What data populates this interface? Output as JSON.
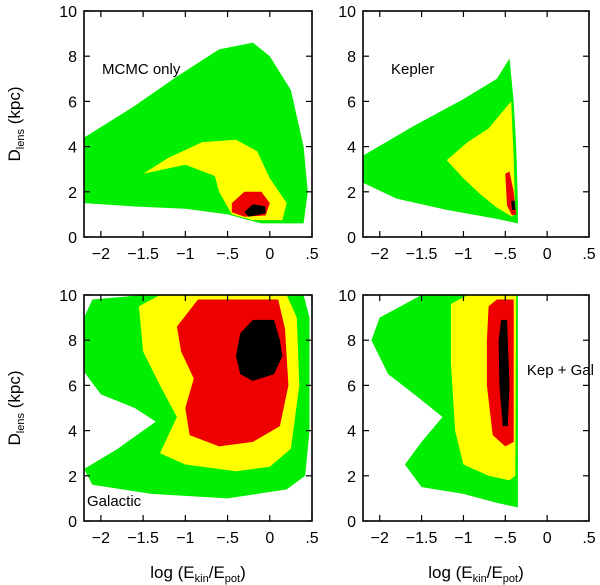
{
  "chart_data": {
    "type": "contour",
    "colors": {
      "level_1": "#00ee00",
      "level_2": "#ffff00",
      "level_3": "#ee0000",
      "level_4": "#000000",
      "frame": "#000000"
    },
    "shared_axes": {
      "x": {
        "range": [
          -2.2,
          0.5
        ],
        "ticks": [
          -2,
          -1.5,
          -1,
          -0.5,
          0,
          0.5
        ],
        "tick_labels": [
          "−2",
          "−1.5",
          "−1",
          "−.5",
          "0",
          ".5"
        ]
      },
      "y": {
        "range": [
          0,
          10
        ],
        "ticks": [
          0,
          2,
          4,
          6,
          8,
          10
        ],
        "tick_labels": [
          "0",
          "2",
          "4",
          "6",
          "8",
          "10"
        ]
      }
    },
    "axis_labels": {
      "y_main": "D",
      "y_sub": "lens",
      "y_unit": " (kpc)",
      "x_pre": "log (E",
      "x_sub1": "kin",
      "x_mid": "/E",
      "x_sub2": "pot",
      "x_post": ")"
    },
    "panels": [
      {
        "label": "MCMC only",
        "row": 0,
        "col": 0,
        "label_pos": "top-left",
        "regions": {
          "level_1": [
            [
              -2.2,
              1.5
            ],
            [
              -1.6,
              1.35
            ],
            [
              -1.0,
              1.25
            ],
            [
              -0.5,
              1.0
            ],
            [
              -0.1,
              0.6
            ],
            [
              0.4,
              0.6
            ],
            [
              0.45,
              2.0
            ],
            [
              0.4,
              4.0
            ],
            [
              0.25,
              6.5
            ],
            [
              0.0,
              8.0
            ],
            [
              -0.2,
              8.6
            ],
            [
              -0.6,
              8.3
            ],
            [
              -1.1,
              7.1
            ],
            [
              -1.6,
              5.8
            ],
            [
              -2.2,
              4.4
            ]
          ],
          "level_2": [
            [
              -1.5,
              2.8
            ],
            [
              -1.0,
              3.2
            ],
            [
              -0.65,
              2.7
            ],
            [
              -0.6,
              2.0
            ],
            [
              -0.45,
              1.0
            ],
            [
              -0.2,
              0.75
            ],
            [
              0.15,
              0.75
            ],
            [
              0.2,
              1.5
            ],
            [
              0.0,
              2.6
            ],
            [
              -0.15,
              3.8
            ],
            [
              -0.4,
              4.3
            ],
            [
              -0.8,
              4.2
            ],
            [
              -1.2,
              3.5
            ]
          ],
          "level_3": [
            [
              -0.45,
              1.5
            ],
            [
              -0.3,
              2.0
            ],
            [
              -0.1,
              2.0
            ],
            [
              0.0,
              1.5
            ],
            [
              -0.05,
              0.95
            ],
            [
              -0.3,
              0.9
            ],
            [
              -0.45,
              1.1
            ]
          ],
          "level_4": [
            [
              -0.3,
              1.1
            ],
            [
              -0.2,
              1.45
            ],
            [
              -0.05,
              1.35
            ],
            [
              -0.05,
              1.05
            ],
            [
              -0.25,
              0.9
            ]
          ]
        }
      },
      {
        "label": "Kepler",
        "row": 0,
        "col": 1,
        "label_pos": "top-left",
        "regions": {
          "level_1": [
            [
              -2.2,
              2.4
            ],
            [
              -2.2,
              3.6
            ],
            [
              -1.6,
              4.9
            ],
            [
              -1.0,
              6.1
            ],
            [
              -0.6,
              7.0
            ],
            [
              -0.45,
              7.9
            ],
            [
              -0.4,
              6.0
            ],
            [
              -0.37,
              4.0
            ],
            [
              -0.35,
              1.5
            ],
            [
              -0.35,
              0.6
            ],
            [
              -0.6,
              0.8
            ],
            [
              -1.2,
              1.2
            ],
            [
              -1.8,
              1.7
            ]
          ],
          "level_2": [
            [
              -1.2,
              3.4
            ],
            [
              -0.95,
              4.2
            ],
            [
              -0.7,
              4.8
            ],
            [
              -0.5,
              5.7
            ],
            [
              -0.43,
              6.0
            ],
            [
              -0.4,
              3.5
            ],
            [
              -0.38,
              1.0
            ],
            [
              -0.42,
              0.9
            ],
            [
              -0.6,
              1.3
            ],
            [
              -0.8,
              1.9
            ],
            [
              -1.0,
              2.6
            ]
          ],
          "level_3": [
            [
              -0.5,
              2.8
            ],
            [
              -0.45,
              2.9
            ],
            [
              -0.4,
              2.0
            ],
            [
              -0.37,
              1.0
            ],
            [
              -0.42,
              0.95
            ],
            [
              -0.48,
              1.4
            ]
          ],
          "level_4": [
            [
              -0.43,
              1.6
            ],
            [
              -0.39,
              1.6
            ],
            [
              -0.38,
              1.2
            ],
            [
              -0.42,
              1.2
            ]
          ]
        }
      },
      {
        "label": "Galactic",
        "row": 1,
        "col": 0,
        "label_pos": "bottom-left",
        "regions": {
          "level_1": [
            [
              -2.1,
              9.8
            ],
            [
              -1.5,
              10.0
            ],
            [
              0.4,
              10.0
            ],
            [
              0.47,
              9.0
            ],
            [
              0.47,
              4.0
            ],
            [
              0.42,
              2.0
            ],
            [
              0.2,
              1.4
            ],
            [
              -0.5,
              1.0
            ],
            [
              -1.4,
              1.2
            ],
            [
              -2.1,
              1.6
            ],
            [
              -2.2,
              2.3
            ],
            [
              -1.8,
              3.2
            ],
            [
              -1.35,
              4.4
            ],
            [
              -1.6,
              5.0
            ],
            [
              -2.0,
              5.6
            ],
            [
              -2.2,
              6.6
            ],
            [
              -2.2,
              9.0
            ]
          ],
          "level_2": [
            [
              -1.55,
              9.5
            ],
            [
              -1.3,
              10.0
            ],
            [
              0.2,
              10.0
            ],
            [
              0.32,
              9.0
            ],
            [
              0.35,
              6.0
            ],
            [
              0.25,
              3.2
            ],
            [
              0.0,
              2.4
            ],
            [
              -0.4,
              2.2
            ],
            [
              -1.0,
              2.5
            ],
            [
              -1.3,
              3.0
            ],
            [
              -1.1,
              4.6
            ],
            [
              -1.3,
              6.0
            ],
            [
              -1.5,
              7.5
            ]
          ],
          "level_3": [
            [
              -1.1,
              8.6
            ],
            [
              -0.85,
              9.8
            ],
            [
              0.1,
              9.8
            ],
            [
              0.18,
              8.5
            ],
            [
              0.22,
              6.0
            ],
            [
              0.12,
              4.2
            ],
            [
              -0.2,
              3.5
            ],
            [
              -0.6,
              3.3
            ],
            [
              -0.95,
              3.8
            ],
            [
              -1.0,
              5.0
            ],
            [
              -0.9,
              6.3
            ],
            [
              -1.05,
              7.5
            ]
          ],
          "level_4": [
            [
              -0.4,
              7.3
            ],
            [
              -0.35,
              8.3
            ],
            [
              -0.2,
              8.9
            ],
            [
              0.05,
              8.9
            ],
            [
              0.12,
              8.0
            ],
            [
              0.15,
              7.3
            ],
            [
              0.05,
              6.5
            ],
            [
              -0.2,
              6.2
            ],
            [
              -0.35,
              6.5
            ]
          ]
        }
      },
      {
        "label": "Kep + Gal",
        "row": 1,
        "col": 1,
        "label_pos": "right-middle",
        "regions": {
          "level_1": [
            [
              -2.0,
              9.0
            ],
            [
              -1.5,
              10.0
            ],
            [
              -0.35,
              10.0
            ],
            [
              -0.35,
              0.6
            ],
            [
              -0.6,
              0.8
            ],
            [
              -1.0,
              1.2
            ],
            [
              -1.5,
              1.5
            ],
            [
              -1.7,
              2.5
            ],
            [
              -1.5,
              3.5
            ],
            [
              -1.25,
              4.6
            ],
            [
              -1.55,
              5.5
            ],
            [
              -1.9,
              6.5
            ],
            [
              -2.1,
              8.0
            ]
          ],
          "level_2": [
            [
              -1.15,
              9.6
            ],
            [
              -0.95,
              10.0
            ],
            [
              -0.37,
              10.0
            ],
            [
              -0.38,
              2.0
            ],
            [
              -0.45,
              1.8
            ],
            [
              -0.7,
              2.0
            ],
            [
              -1.0,
              2.5
            ],
            [
              -1.1,
              4.0
            ],
            [
              -1.15,
              7.0
            ]
          ],
          "level_3": [
            [
              -0.7,
              9.5
            ],
            [
              -0.6,
              9.8
            ],
            [
              -0.4,
              9.8
            ],
            [
              -0.4,
              3.5
            ],
            [
              -0.5,
              3.3
            ],
            [
              -0.65,
              3.8
            ],
            [
              -0.72,
              6.0
            ],
            [
              -0.72,
              8.0
            ]
          ],
          "level_4": [
            [
              -0.55,
              8.9
            ],
            [
              -0.48,
              8.9
            ],
            [
              -0.45,
              6.0
            ],
            [
              -0.47,
              4.2
            ],
            [
              -0.53,
              4.2
            ],
            [
              -0.57,
              6.0
            ],
            [
              -0.58,
              8.0
            ]
          ]
        }
      }
    ]
  }
}
